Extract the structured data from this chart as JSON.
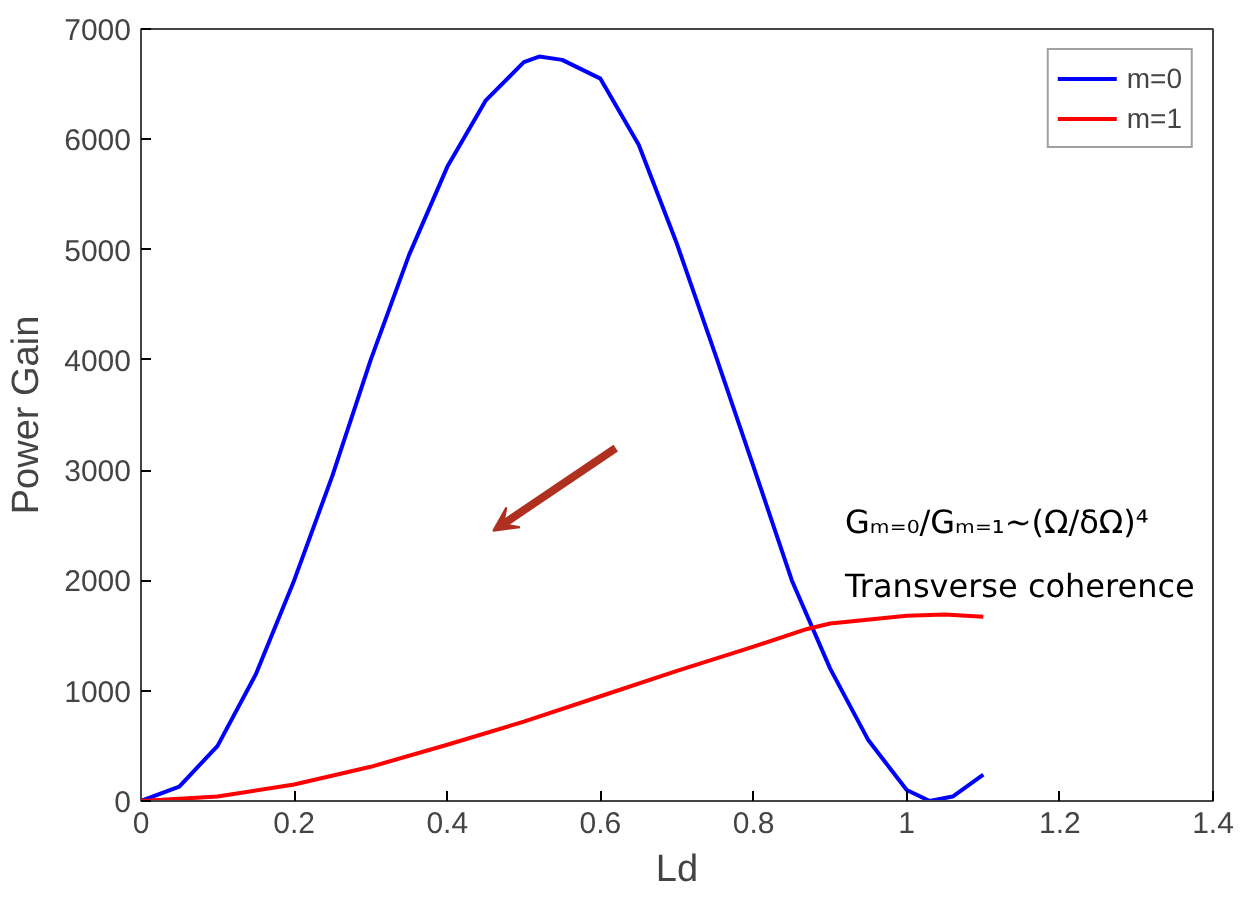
{
  "chart_data": {
    "type": "line",
    "xlabel": "Ld",
    "ylabel": "Power Gain",
    "xlim": [
      0,
      1.4
    ],
    "xticks": [
      0,
      0.2,
      0.4,
      0.6,
      0.8,
      1,
      1.2,
      1.4
    ],
    "ylim": [
      0,
      7000
    ],
    "yticks": [
      0,
      1000,
      2000,
      3000,
      4000,
      5000,
      6000,
      7000
    ],
    "grid": false,
    "legend": "top right",
    "line_style": "solid",
    "marker": "none",
    "annotations": [
      "Gₘ₌₀/Gₘ₌₁~(Ω/δΩ)⁴",
      "Transverse coherence"
    ],
    "series": [
      {
        "name": "m=0",
        "color": "#0000ff",
        "x": [
          0,
          0.05,
          0.1,
          0.15,
          0.2,
          0.25,
          0.3,
          0.35,
          0.4,
          0.45,
          0.5,
          0.52,
          0.55,
          0.6,
          0.65,
          0.7,
          0.75,
          0.8,
          0.85,
          0.9,
          0.95,
          1.0,
          1.03,
          1.06,
          1.1
        ],
        "values": [
          0,
          130,
          500,
          1150,
          2000,
          2950,
          4000,
          4950,
          5750,
          6350,
          6700,
          6750,
          6720,
          6550,
          5950,
          5050,
          4050,
          3030,
          2000,
          1200,
          550,
          100,
          0,
          40,
          240
        ]
      },
      {
        "name": "m=1",
        "color": "#ff0000",
        "x": [
          0,
          0.1,
          0.2,
          0.3,
          0.4,
          0.5,
          0.6,
          0.7,
          0.8,
          0.87,
          0.9,
          1.0,
          1.05,
          1.1
        ],
        "values": [
          0,
          40,
          150,
          310,
          510,
          720,
          950,
          1180,
          1400,
          1560,
          1610,
          1680,
          1690,
          1670
        ]
      }
    ]
  }
}
